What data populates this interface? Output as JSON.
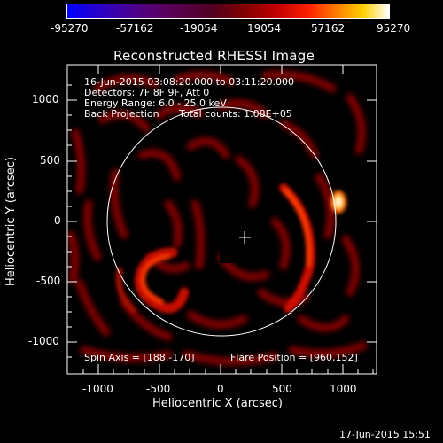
{
  "colorbar": {
    "ticks": [
      "-95270",
      "-57162",
      "-19054",
      "19054",
      "57162",
      "95270"
    ]
  },
  "title": "Reconstructed RHESSI Image",
  "info": {
    "time": "16-Jun-2015 03:08:20.000 to 03:11:20.000",
    "detectors": "Detectors: 7F 8F 9F, Att 0",
    "energy": "Energy Range: 6.0 - 25.0 keV",
    "method": "Back Projection",
    "counts": "Total counts: 1.08E+05"
  },
  "footer_left": "Spin Axis = [188,-170]",
  "footer_right": "Flare Position = [960,152]",
  "xlabel": "Heliocentric X (arcsec)",
  "ylabel": "Heliocentric Y (arcsec)",
  "x_ticks": [
    "-1000",
    "-500",
    "0",
    "500",
    "1000"
  ],
  "y_ticks": [
    "1000",
    "500",
    "0",
    "-500",
    "-1000"
  ],
  "timestamp": "17-Jun-2015 15:51"
}
